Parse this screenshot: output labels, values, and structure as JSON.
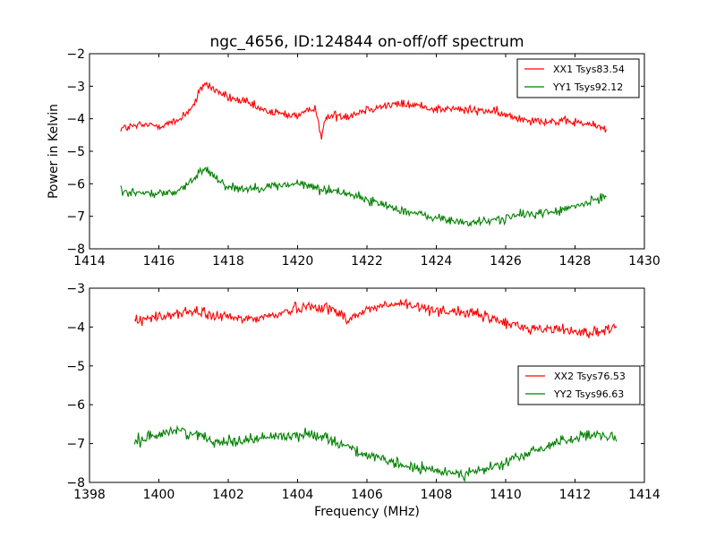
{
  "chart_data": [
    {
      "type": "line",
      "title": "ngc_4656, ID:124844 on-off/off spectrum",
      "xlabel": "",
      "ylabel": "Power in Kelvin",
      "xlim": [
        1414,
        1430
      ],
      "ylim": [
        -8,
        -2
      ],
      "xticks": [
        1414,
        1416,
        1418,
        1420,
        1422,
        1424,
        1426,
        1428,
        1430
      ],
      "yticks": [
        -8,
        -7,
        -6,
        -5,
        -4,
        -3,
        -2
      ],
      "grid": false,
      "legend_position": "top-right",
      "series": [
        {
          "name": "XX1 Tsys83.54",
          "color": "#ff0000",
          "x": [
            1414.9,
            1415.5,
            1416.0,
            1416.5,
            1417.0,
            1417.3,
            1417.6,
            1418.0,
            1418.5,
            1419.0,
            1419.5,
            1420.0,
            1420.3,
            1420.5,
            1420.7,
            1420.8,
            1421.0,
            1421.5,
            1422.0,
            1422.5,
            1423.0,
            1423.5,
            1424.0,
            1424.5,
            1425.0,
            1425.5,
            1426.0,
            1426.5,
            1427.0,
            1427.5,
            1428.0,
            1428.5,
            1428.9
          ],
          "y": [
            -4.3,
            -4.2,
            -4.2,
            -4.1,
            -3.6,
            -2.9,
            -3.1,
            -3.35,
            -3.5,
            -3.75,
            -3.85,
            -3.9,
            -3.8,
            -3.6,
            -4.6,
            -4.0,
            -3.9,
            -3.9,
            -3.7,
            -3.6,
            -3.55,
            -3.6,
            -3.7,
            -3.7,
            -3.75,
            -3.75,
            -3.9,
            -4.0,
            -4.05,
            -4.1,
            -4.1,
            -4.2,
            -4.3
          ]
        },
        {
          "name": "YY1 Tsys92.12",
          "color": "#008000",
          "x": [
            1414.9,
            1415.5,
            1416.0,
            1416.5,
            1417.0,
            1417.3,
            1417.6,
            1418.0,
            1418.5,
            1419.0,
            1419.5,
            1420.0,
            1420.5,
            1420.7,
            1421.0,
            1421.5,
            1422.0,
            1422.5,
            1423.0,
            1423.5,
            1424.0,
            1424.5,
            1425.0,
            1425.5,
            1426.0,
            1426.5,
            1427.0,
            1427.5,
            1428.0,
            1428.5,
            1428.9
          ],
          "y": [
            -6.2,
            -6.3,
            -6.3,
            -6.25,
            -5.9,
            -5.5,
            -5.75,
            -6.1,
            -6.15,
            -6.1,
            -6.05,
            -6.0,
            -6.1,
            -6.2,
            -6.2,
            -6.3,
            -6.5,
            -6.65,
            -6.8,
            -6.95,
            -7.05,
            -7.15,
            -7.2,
            -7.15,
            -7.05,
            -6.95,
            -6.9,
            -6.85,
            -6.7,
            -6.55,
            -6.35
          ]
        }
      ]
    },
    {
      "type": "line",
      "title": "",
      "xlabel": "Frequency (MHz)",
      "ylabel": "",
      "xlim": [
        1398,
        1414
      ],
      "ylim": [
        -8,
        -3
      ],
      "xticks": [
        1398,
        1400,
        1402,
        1404,
        1406,
        1408,
        1410,
        1412,
        1414
      ],
      "yticks": [
        -8,
        -7,
        -6,
        -5,
        -4,
        -3
      ],
      "grid": false,
      "legend_position": "center-right",
      "series": [
        {
          "name": "XX2 Tsys76.53",
          "color": "#ff0000",
          "x": [
            1399.3,
            1400.0,
            1400.5,
            1401.0,
            1401.5,
            1402.0,
            1402.5,
            1403.0,
            1403.5,
            1404.0,
            1404.5,
            1405.0,
            1405.5,
            1406.0,
            1406.5,
            1407.0,
            1407.5,
            1408.0,
            1408.5,
            1409.0,
            1409.5,
            1410.0,
            1410.5,
            1411.0,
            1411.5,
            1412.0,
            1412.5,
            1413.2
          ],
          "y": [
            -3.8,
            -3.75,
            -3.65,
            -3.6,
            -3.7,
            -3.75,
            -3.8,
            -3.75,
            -3.65,
            -3.5,
            -3.45,
            -3.55,
            -3.8,
            -3.55,
            -3.45,
            -3.4,
            -3.5,
            -3.55,
            -3.6,
            -3.65,
            -3.75,
            -3.9,
            -4.0,
            -4.05,
            -4.05,
            -4.1,
            -4.15,
            -4.05
          ]
        },
        {
          "name": "YY2 Tsys96.63",
          "color": "#008000",
          "x": [
            1399.3,
            1400.0,
            1400.5,
            1401.0,
            1401.5,
            1402.0,
            1402.5,
            1403.0,
            1403.5,
            1404.0,
            1404.5,
            1405.0,
            1405.5,
            1406.0,
            1406.5,
            1407.0,
            1407.5,
            1408.0,
            1408.5,
            1409.0,
            1409.5,
            1410.0,
            1410.5,
            1411.0,
            1411.5,
            1412.0,
            1412.5,
            1413.2
          ],
          "y": [
            -6.95,
            -6.75,
            -6.65,
            -6.75,
            -6.9,
            -6.95,
            -6.9,
            -6.85,
            -6.8,
            -6.8,
            -6.75,
            -6.9,
            -7.1,
            -7.3,
            -7.45,
            -7.55,
            -7.65,
            -7.7,
            -7.75,
            -7.75,
            -7.65,
            -7.5,
            -7.3,
            -7.15,
            -6.95,
            -6.85,
            -6.8,
            -6.85
          ]
        }
      ]
    }
  ]
}
